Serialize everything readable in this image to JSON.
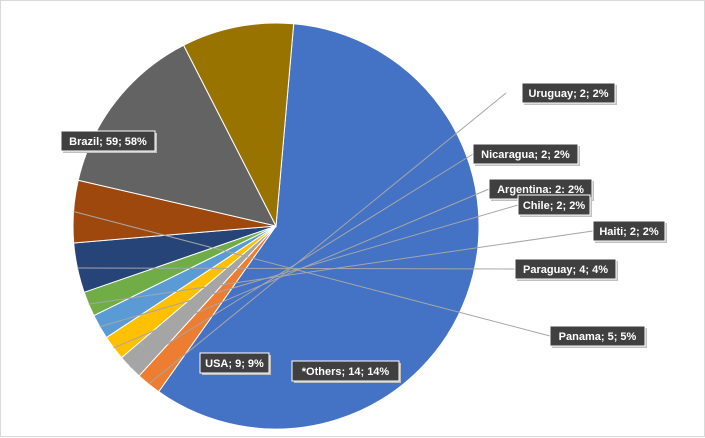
{
  "chart_data": {
    "type": "pie",
    "title": "",
    "legend": "none",
    "slices": [
      {
        "label": "Brazil",
        "value": 59,
        "percent": 58,
        "color": "#4472C4",
        "label_text": "Brazil; 59; 58%"
      },
      {
        "label": "Uruguay",
        "value": 2,
        "percent": 2,
        "color": "#ED7D31",
        "label_text": "Uruguay;  2; 2%"
      },
      {
        "label": "Nicaragua",
        "value": 2,
        "percent": 2,
        "color": "#A5A5A5",
        "label_text": "Nicaragua;  2; 2%"
      },
      {
        "label": "Argentina",
        "value": 2,
        "percent": 2,
        "color": "#FFC000",
        "label_text": "Argentina: 2: 2%"
      },
      {
        "label": "Chile",
        "value": 2,
        "percent": 2,
        "color": "#5B9BD5",
        "label_text": "Chile; 2; 2%"
      },
      {
        "label": "Haiti",
        "value": 2,
        "percent": 2,
        "color": "#70AD47",
        "label_text": "Haiti;  2; 2%"
      },
      {
        "label": "Paraguay",
        "value": 4,
        "percent": 4,
        "color": "#264478",
        "label_text": "Paraguay;  4; 4%"
      },
      {
        "label": "Panama",
        "value": 5,
        "percent": 5,
        "color": "#9E480E",
        "label_text": "Panama;  5; 5%"
      },
      {
        "label": "*Others",
        "value": 14,
        "percent": 14,
        "color": "#636363",
        "label_text": "*Others; 14; 14%"
      },
      {
        "label": "USA",
        "value": 9,
        "percent": 9,
        "color": "#997300",
        "label_text": "USA; 9; 9%"
      }
    ]
  }
}
